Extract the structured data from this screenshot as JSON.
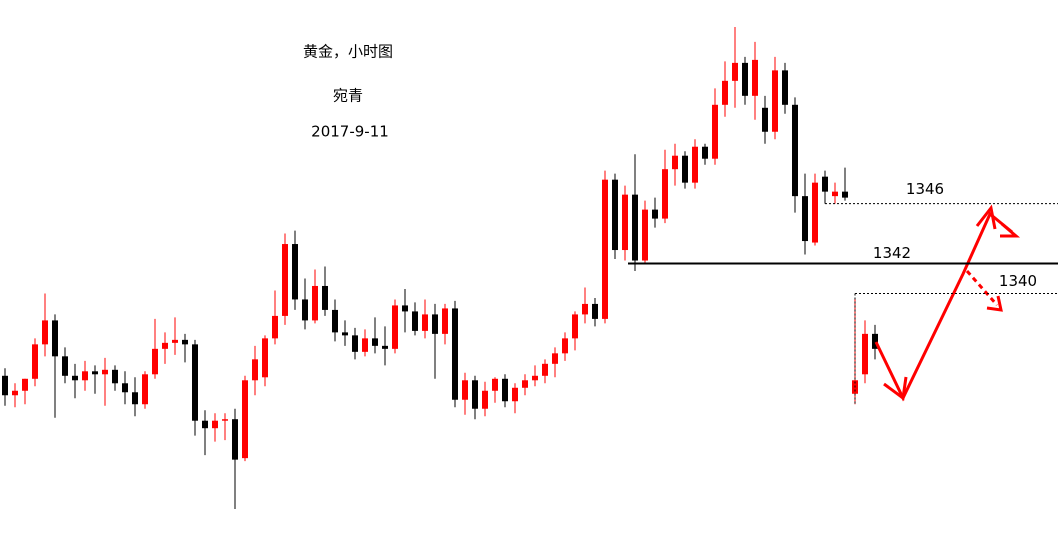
{
  "chart_data": {
    "type": "candlestick",
    "title": "黄金，小时图",
    "subtitle": "宛青",
    "date": "2017-9-11",
    "up_color": "#ff0000",
    "down_color": "#000000",
    "ylim": [
      1324,
      1359.6
    ],
    "candles": {
      "open": [
        1334.5,
        1333.2,
        1333.5,
        1334.3,
        1336.6,
        1338.2,
        1335.8,
        1334.5,
        1334.2,
        1334.8,
        1334.6,
        1334.9,
        1334.0,
        1333.4,
        1332.6,
        1334.6,
        1336.3,
        1336.7,
        1336.9,
        1336.6,
        1331.5,
        1331.0,
        1331.5,
        1331.6,
        1329.0,
        1334.2,
        1334.4,
        1337.0,
        1338.5,
        1343.3,
        1339.6,
        1338.2,
        1340.5,
        1338.9,
        1337.4,
        1337.2,
        1336.1,
        1337.0,
        1336.5,
        1336.3,
        1339.2,
        1338.8,
        1337.5,
        1338.6,
        1337.3,
        1339.0,
        1332.9,
        1334.2,
        1332.3,
        1333.5,
        1334.3,
        1332.8,
        1333.7,
        1334.2,
        1334.5,
        1335.3,
        1336.0,
        1337.0,
        1338.6,
        1339.3,
        1338.3,
        1347.6,
        1342.9,
        1346.6,
        1342.2,
        1345.6,
        1345.0,
        1348.3,
        1349.2,
        1347.4,
        1349.8,
        1349.0,
        1352.6,
        1354.2,
        1355.4,
        1353.2,
        1352.4,
        1350.8,
        1354.9,
        1352.6,
        1346.5,
        1343.4,
        1347.8,
        1346.5,
        1346.8
      ],
      "high": [
        1335.0,
        1334.0,
        1334.3,
        1337.0,
        1340.0,
        1338.6,
        1336.4,
        1335.3,
        1335.5,
        1335.2,
        1335.7,
        1335.2,
        1334.8,
        1334.4,
        1334.8,
        1338.3,
        1337.4,
        1338.4,
        1337.3,
        1336.9,
        1332.2,
        1332.0,
        1332.0,
        1332.3,
        1334.5,
        1336.5,
        1337.2,
        1340.2,
        1344.0,
        1344.2,
        1341.0,
        1341.6,
        1341.8,
        1339.6,
        1338.2,
        1337.7,
        1337.6,
        1338.4,
        1337.8,
        1339.6,
        1340.3,
        1339.4,
        1339.6,
        1339.3,
        1339.3,
        1339.5,
        1334.7,
        1334.5,
        1334.1,
        1334.4,
        1334.6,
        1334.0,
        1334.6,
        1335.2,
        1335.6,
        1336.4,
        1337.4,
        1338.8,
        1340.4,
        1339.7,
        1348.2,
        1348.0,
        1347.2,
        1349.3,
        1346.2,
        1346.4,
        1349.6,
        1350.0,
        1349.5,
        1350.3,
        1350.0,
        1353.7,
        1355.5,
        1357.8,
        1355.8,
        1356.8,
        1353.2,
        1355.8,
        1355.4,
        1353.1,
        1348.0,
        1348.0,
        1348.2,
        1347.4,
        1348.4
      ],
      "low": [
        1332.5,
        1332.4,
        1332.6,
        1333.8,
        1335.8,
        1331.7,
        1334.0,
        1333.0,
        1333.5,
        1333.3,
        1332.5,
        1333.5,
        1332.6,
        1331.8,
        1332.3,
        1334.3,
        1335.3,
        1335.9,
        1335.4,
        1330.5,
        1329.2,
        1330.1,
        1330.2,
        1325.6,
        1328.8,
        1333.2,
        1333.8,
        1336.6,
        1337.9,
        1338.9,
        1337.6,
        1338.0,
        1338.5,
        1336.8,
        1336.5,
        1335.6,
        1335.8,
        1336.0,
        1335.2,
        1336.0,
        1337.4,
        1337.2,
        1337.0,
        1334.3,
        1336.6,
        1332.4,
        1331.9,
        1331.6,
        1331.8,
        1332.7,
        1332.4,
        1332.0,
        1333.2,
        1333.8,
        1334.0,
        1334.4,
        1335.5,
        1336.2,
        1338.0,
        1337.8,
        1338.0,
        1342.3,
        1342.2,
        1341.5,
        1342.0,
        1344.4,
        1344.7,
        1347.2,
        1347.0,
        1347.0,
        1348.6,
        1348.6,
        1351.8,
        1352.4,
        1352.6,
        1351.6,
        1350.0,
        1350.3,
        1352.0,
        1345.4,
        1342.6,
        1343.2,
        1346.0,
        1346.0,
        1346.2
      ],
      "close": [
        1333.2,
        1333.5,
        1334.3,
        1336.6,
        1338.2,
        1335.8,
        1334.5,
        1334.2,
        1334.8,
        1334.6,
        1334.9,
        1334.0,
        1333.4,
        1332.6,
        1334.6,
        1336.3,
        1336.7,
        1336.9,
        1336.6,
        1331.5,
        1331.0,
        1331.5,
        1331.6,
        1328.9,
        1334.2,
        1335.6,
        1337.0,
        1338.5,
        1343.3,
        1339.6,
        1338.2,
        1340.5,
        1338.9,
        1337.4,
        1337.2,
        1336.1,
        1337.0,
        1336.5,
        1336.3,
        1339.2,
        1338.8,
        1337.5,
        1338.6,
        1337.3,
        1339.0,
        1332.9,
        1334.2,
        1332.3,
        1333.5,
        1334.3,
        1332.8,
        1333.7,
        1334.2,
        1334.5,
        1335.3,
        1336.0,
        1337.0,
        1338.6,
        1339.3,
        1338.3,
        1347.6,
        1342.9,
        1346.6,
        1342.2,
        1345.6,
        1345.0,
        1348.3,
        1349.2,
        1347.4,
        1349.8,
        1349.0,
        1352.6,
        1354.2,
        1355.4,
        1353.2,
        1355.6,
        1350.8,
        1354.9,
        1352.6,
        1346.5,
        1343.5,
        1347.4,
        1346.8,
        1346.8,
        1346.4
      ]
    },
    "projection": {
      "open": [
        1333.3,
        1334.6,
        1337.3
      ],
      "high": [
        1339.6,
        1338.2,
        1337.9
      ],
      "low": [
        1332.6,
        1334.0,
        1335.6
      ],
      "close": [
        1334.2,
        1337.3,
        1336.3
      ]
    },
    "levels": [
      {
        "value": 1346,
        "style": "dotted"
      },
      {
        "value": 1342,
        "style": "solid"
      },
      {
        "value": 1340,
        "style": "dotted"
      }
    ]
  }
}
